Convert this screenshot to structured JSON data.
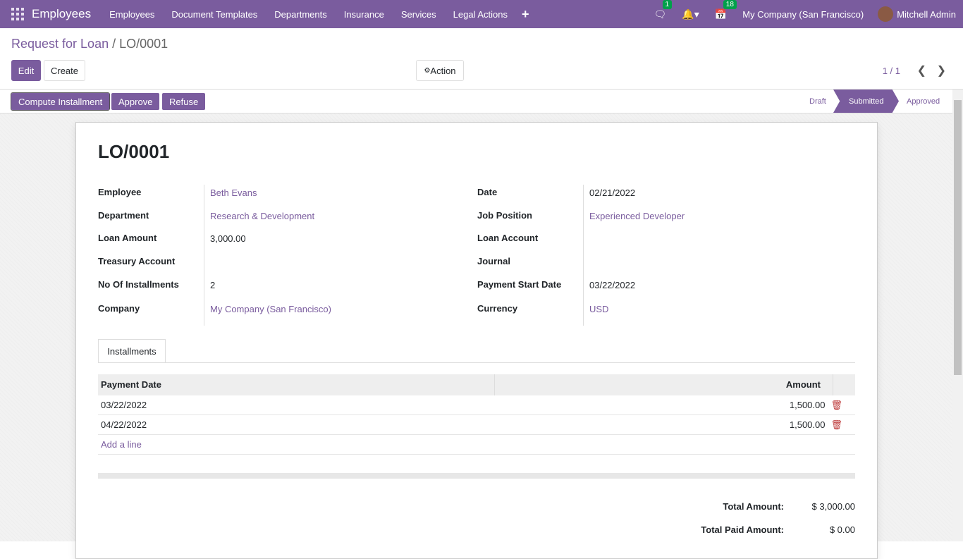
{
  "nav": {
    "app": "Employees",
    "menu": [
      "Employees",
      "Document Templates",
      "Departments",
      "Insurance",
      "Services",
      "Legal Actions"
    ],
    "messages_badge": "1",
    "activities_badge": "18",
    "company": "My Company (San Francisco)",
    "user": "Mitchell Admin"
  },
  "breadcrumb": {
    "parent": "Request for Loan",
    "current": "LO/0001"
  },
  "buttons": {
    "edit": "Edit",
    "create": "Create",
    "action": "Action",
    "compute": "Compute Installment",
    "approve": "Approve",
    "refuse": "Refuse"
  },
  "pager": "1 / 1",
  "status": {
    "items": [
      "Draft",
      "Submitted",
      "Approved"
    ],
    "current": "Submitted"
  },
  "form": {
    "title": "LO/0001",
    "left": [
      {
        "label": "Employee",
        "value": "Beth Evans"
      },
      {
        "label": "Department",
        "value": "Research & Development"
      },
      {
        "label": "Loan Amount",
        "value": "3,000.00"
      },
      {
        "label": "Treasury Account",
        "value": ""
      },
      {
        "label": "No Of Installments",
        "value": "2"
      },
      {
        "label": "Company",
        "value": "My Company (San Francisco)"
      }
    ],
    "right": [
      {
        "label": "Date",
        "value": "02/21/2022"
      },
      {
        "label": "Job Position",
        "value": "Experienced Developer"
      },
      {
        "label": "Loan Account",
        "value": ""
      },
      {
        "label": "Journal",
        "value": ""
      },
      {
        "label": "Payment Start Date",
        "value": "03/22/2022"
      },
      {
        "label": "Currency",
        "value": "USD"
      }
    ]
  },
  "tab": "Installments",
  "table": {
    "headers": [
      "Payment Date",
      "Amount"
    ],
    "rows": [
      {
        "date": "03/22/2022",
        "amount": "1,500.00"
      },
      {
        "date": "04/22/2022",
        "amount": "1,500.00"
      }
    ],
    "add": "Add a line"
  },
  "totals": [
    {
      "label": "Total Amount:",
      "value": "$ 3,000.00"
    },
    {
      "label": "Total Paid Amount:",
      "value": "$ 0.00"
    }
  ],
  "colors": {
    "brand": "#7a5c9e"
  }
}
